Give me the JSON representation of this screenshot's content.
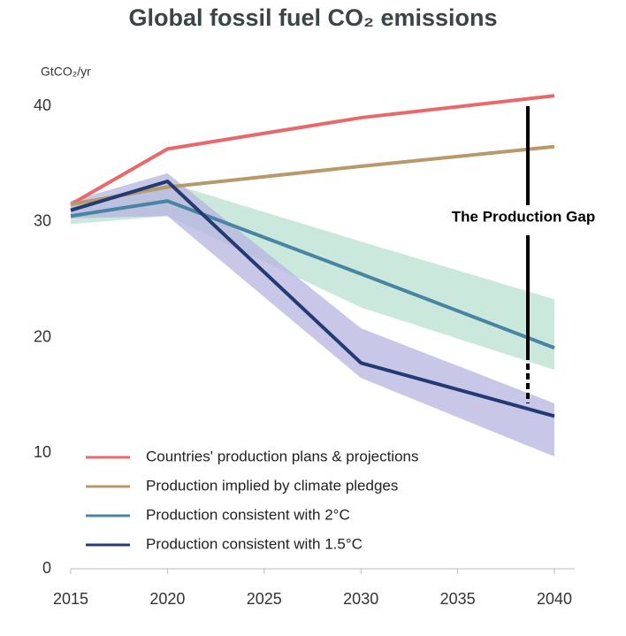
{
  "chart_data": {
    "type": "line",
    "title": "Global fossil fuel CO₂ emissions",
    "y_label": "GtCO₂/yr",
    "annotation": "The Production Gap",
    "x": [
      2015,
      2020,
      2030,
      2040
    ],
    "xlim": [
      2015,
      2040
    ],
    "xticks": [
      2015,
      2020,
      2025,
      2030,
      2035,
      2040
    ],
    "ylim": [
      0,
      40
    ],
    "yticks": [
      0,
      10,
      20,
      30,
      40
    ],
    "series": [
      {
        "name": "Countries' production plans & projections",
        "color": "#e8696b",
        "values": [
          31.5,
          36.3,
          39,
          40.9
        ]
      },
      {
        "name": "Production implied by climate pledges",
        "color": "#b89a6a",
        "values": [
          31.5,
          33,
          34.8,
          36.5
        ]
      },
      {
        "name": "Production consistent with 2°C",
        "color": "#4a84a3",
        "values": [
          30.5,
          31.8,
          25.5,
          19.1
        ],
        "band_lower": [
          29.8,
          30.5,
          22.6,
          17.2
        ],
        "band_upper": [
          31.5,
          33.4,
          28.3,
          23.3
        ],
        "band_color": "#b9e0d1"
      },
      {
        "name": "Production consistent with 1.5°C",
        "color": "#233a72",
        "values": [
          31,
          33.5,
          17.8,
          13.2
        ],
        "band_lower": [
          30.3,
          30.5,
          16.5,
          9.7
        ],
        "band_upper": [
          31.8,
          34.2,
          20.8,
          14.3
        ],
        "band_color": "#b7b4e0"
      }
    ]
  }
}
